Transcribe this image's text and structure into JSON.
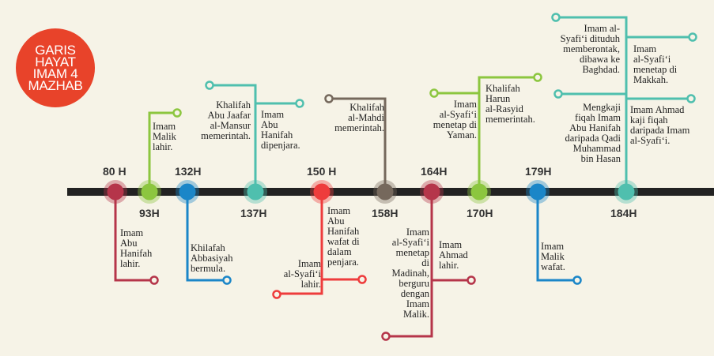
{
  "title": {
    "lines": [
      "GARIS",
      "HAYAT",
      "IMAM 4",
      "MAZHAB"
    ],
    "color": "#e8432a"
  },
  "colors": {
    "axis": "#222222",
    "crimson": "#b5354a",
    "green": "#8cc63f",
    "blue": "#1b86c8",
    "teal": "#4fbfae",
    "red": "#ee3c3c",
    "brown": "#75685c"
  },
  "years": [
    "80 H",
    "93H",
    "132H",
    "137H",
    "150 H",
    "158H",
    "164H",
    "170H",
    "179H",
    "184H"
  ],
  "notes": [
    {
      "id": "80h",
      "color": "crimson",
      "text": "Imam\nAbu\nHanifah\nlahir."
    },
    {
      "id": "93h",
      "color": "green",
      "text": "Imam\nMalik\nlahir."
    },
    {
      "id": "132h",
      "color": "blue",
      "text": "Khilafah\nAbbasiyah\nbermula."
    },
    {
      "id": "137h-a",
      "color": "teal",
      "text": "Khalifah\nAbu Jaafar\nal-Mansur\nmemerintah."
    },
    {
      "id": "137h-b",
      "color": "teal",
      "text": "Imam\nAbu\nHanifah\ndipenjara."
    },
    {
      "id": "150h-a",
      "color": "red",
      "text": "Imam\nAbu\nHanifah\nwafat di\ndalam\npenjara."
    },
    {
      "id": "150h-b",
      "color": "red",
      "text": "Imam\nal-Syafi‘i\nlahir."
    },
    {
      "id": "158h",
      "color": "brown",
      "text": "Khalifah\nal-Mahdi\nmemerintah."
    },
    {
      "id": "164h-a",
      "color": "crimson",
      "text": "Imam\nal-Syafi‘i\nmenetap\ndi\nMadinah,\nberguru\ndengan\nImam\nMalik."
    },
    {
      "id": "164h-b",
      "color": "crimson",
      "text": "Imam\nAhmad\nlahir."
    },
    {
      "id": "170h-a",
      "color": "green",
      "text": "Imam\nal-Syafi‘i\nmenetap di\nYaman."
    },
    {
      "id": "170h-b",
      "color": "green",
      "text": "Khalifah\nHarun\nal-Rasyid\nmemerintah."
    },
    {
      "id": "179h",
      "color": "blue",
      "text": "Imam\nMalik\nwafat."
    },
    {
      "id": "184h-a",
      "color": "teal",
      "text": "Imam al-\nSyafi‘i dituduh\nmemberontak,\ndibawa ke\nBaghdad."
    },
    {
      "id": "184h-b",
      "color": "teal",
      "text": "Imam\nal-Syafi‘i\nmenetap di\nMakkah."
    },
    {
      "id": "184h-c",
      "color": "teal",
      "text": "Mengkaji\nfiqah Imam\nAbu Hanifah\ndaripada Qadi\nMuhammad\nbin Hasan"
    },
    {
      "id": "184h-d",
      "color": "teal",
      "text": "Imam Ahmad\nkaji fiqah\ndaripada Imam\nal-Syafi‘i."
    }
  ]
}
